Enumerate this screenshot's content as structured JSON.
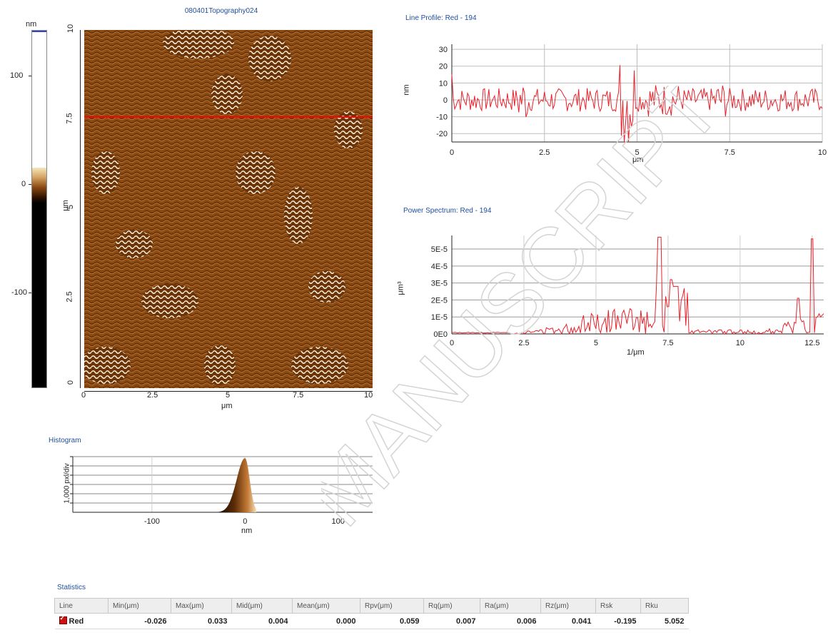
{
  "colorbar": {
    "unit": "nm",
    "ticks": [
      "100",
      "0",
      "-100"
    ]
  },
  "topography": {
    "title": "080401Topography024",
    "x_ticks": [
      "0",
      "2.5",
      "5",
      "7.5",
      "10"
    ],
    "y_ticks": [
      "0",
      "2.5",
      "5",
      "7.5",
      "10"
    ],
    "x_label": "μm",
    "y_label": "μm",
    "line_color": "#ff0000",
    "surface_color": "#8a4a12"
  },
  "line_profile": {
    "title": "Line Profile: Red - 194",
    "ylabel": "nm",
    "xlabel": "μm",
    "x_ticks": [
      "0",
      "2.5",
      "5",
      "7.5",
      "10"
    ],
    "y_ticks": [
      "30",
      "20",
      "10",
      "0",
      "-10",
      "-20"
    ],
    "color": "#e8202a"
  },
  "power_spectrum": {
    "title": "Power Spectrum: Red - 194",
    "ylabel": "μm³",
    "xlabel": "1/μm",
    "x_ticks": [
      "0",
      "2.5",
      "5",
      "7.5",
      "10",
      "12.5"
    ],
    "y_ticks": [
      "5E-5",
      "4E-5",
      "3E-5",
      "2E-5",
      "1E-5",
      "0E0"
    ],
    "color": "#e8202a"
  },
  "histogram": {
    "title": "Histogram",
    "ylabel": "1,000 pxl/div",
    "xlabel": "nm",
    "x_ticks": [
      "-100",
      "0",
      "100"
    ]
  },
  "statistics": {
    "title": "Statistics",
    "headers": [
      "Line",
      "Min(μm)",
      "Max(μm)",
      "Mid(μm)",
      "Mean(μm)",
      "Rpv(μm)",
      "Rq(μm)",
      "Ra(μm)",
      "Rz(μm)",
      "Rsk",
      "Rku"
    ],
    "rows": [
      [
        "Red",
        "-0.026",
        "0.033",
        "0.004",
        "0.000",
        "0.059",
        "0.007",
        "0.006",
        "0.041",
        "-0.195",
        "5.052"
      ]
    ]
  },
  "watermark": "MANUSCRIPT"
}
